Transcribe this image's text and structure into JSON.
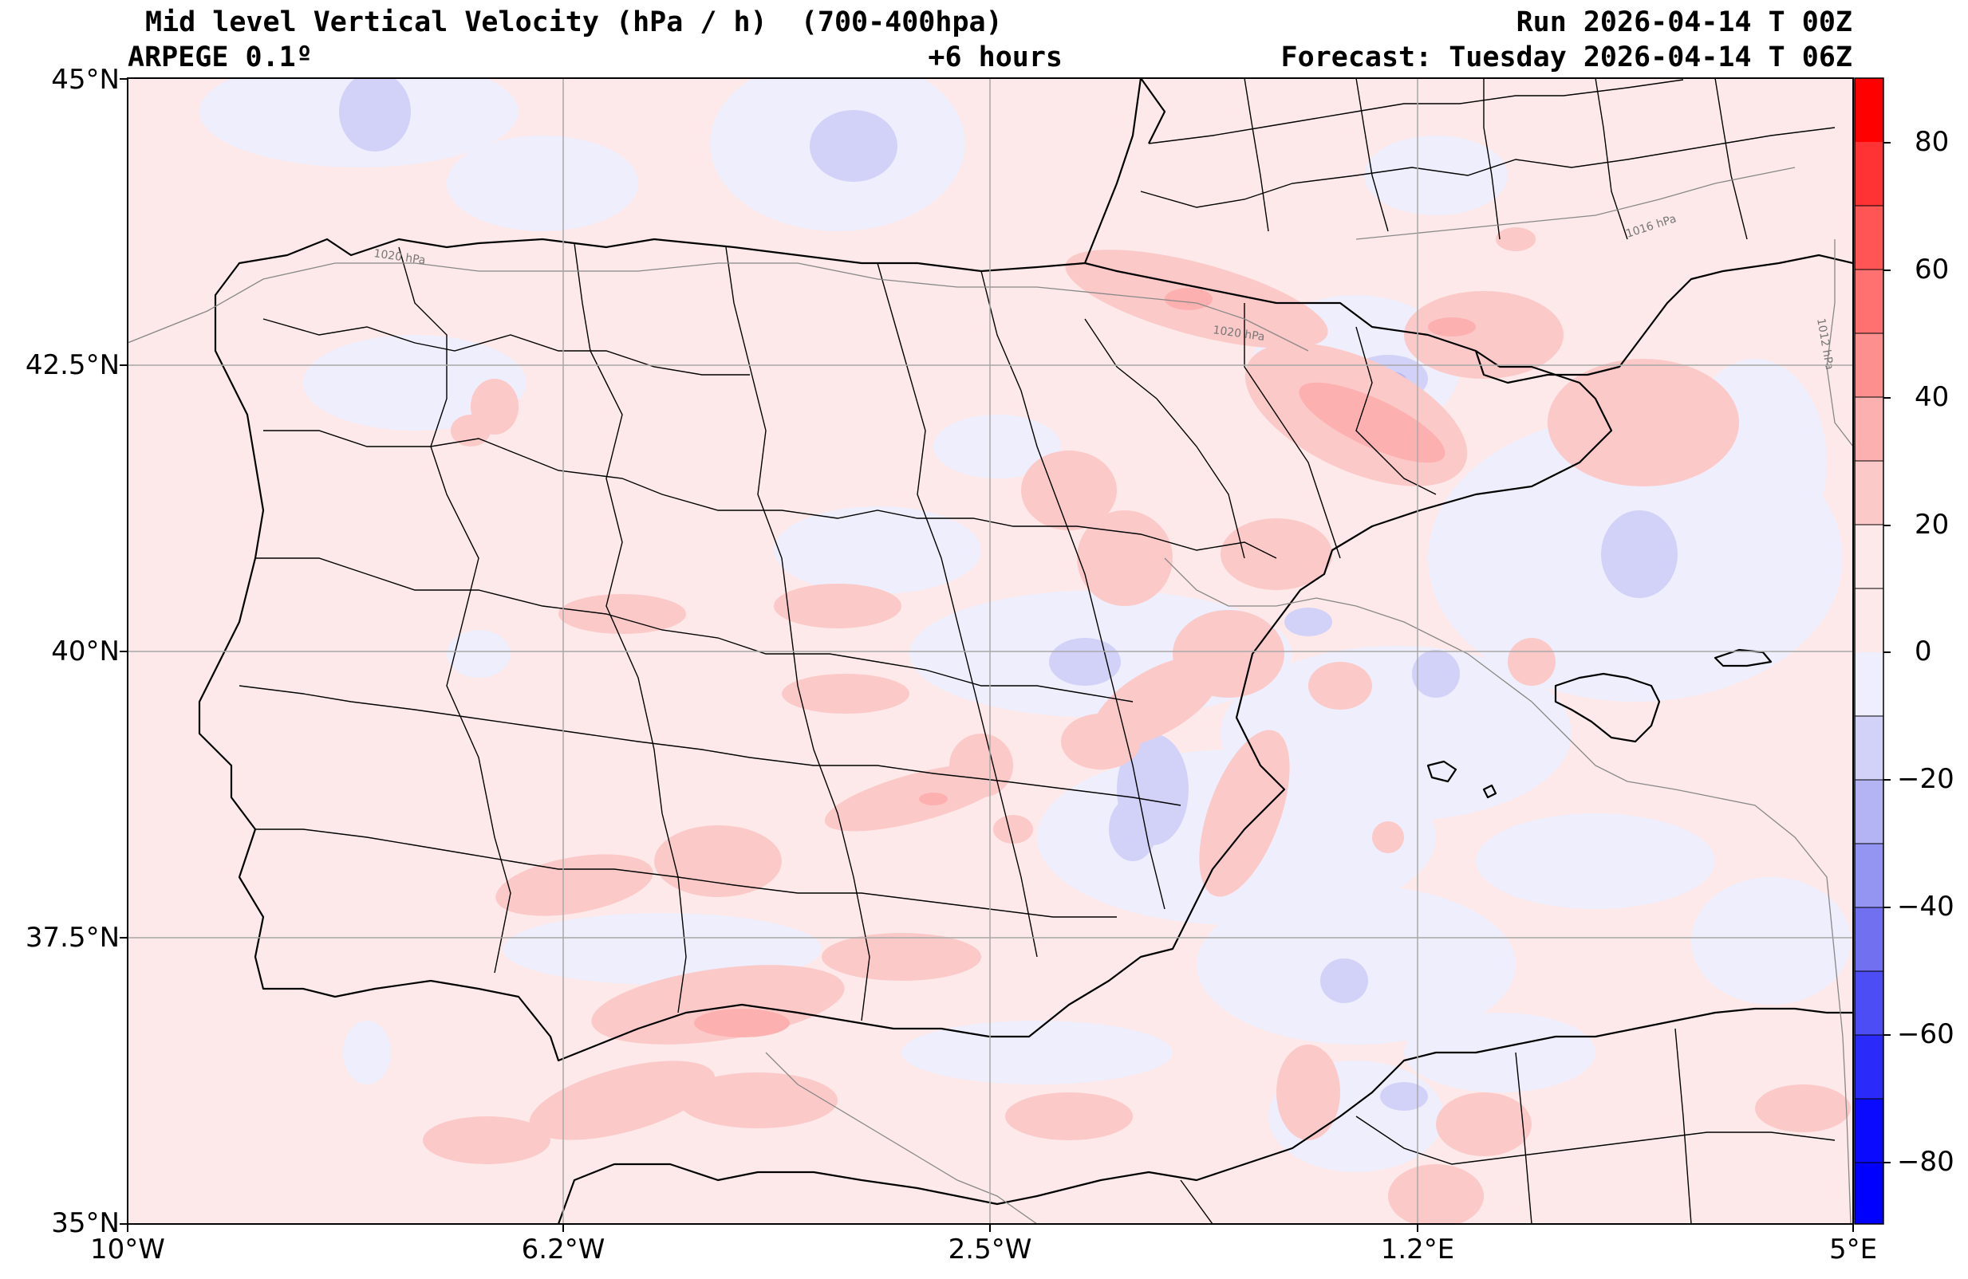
{
  "header": {
    "title": "Mid level Vertical Velocity (hPa / h)  (700-400hpa)",
    "model": "ARPEGE 0.1º",
    "lead": "+6 hours",
    "run": "Run 2026-04-14 T 00Z",
    "forecast": "Forecast: Tuesday 2026-04-14 T 06Z"
  },
  "map": {
    "lat_labels": [
      "45°N",
      "42.5°N",
      "40°N",
      "37.5°N",
      "35°N"
    ],
    "lon_labels": [
      "10°W",
      "6.2°W",
      "2.5°W",
      "1.2°E",
      "5°E"
    ],
    "isobar_labels": [
      "1020 hPa",
      "1020 hPa",
      "1016 hPa",
      "1012 hPa"
    ]
  },
  "colorbar": {
    "ticks": [
      "80",
      "60",
      "40",
      "20",
      "0",
      "−20",
      "−40",
      "−60",
      "−80"
    ],
    "range": [
      -90,
      90
    ],
    "colors": {
      "strong_positive": "#ff0000",
      "weak_positive": "#fde9e9",
      "weak_negative": "#eeeefc",
      "strong_negative": "#0000ff"
    }
  }
}
